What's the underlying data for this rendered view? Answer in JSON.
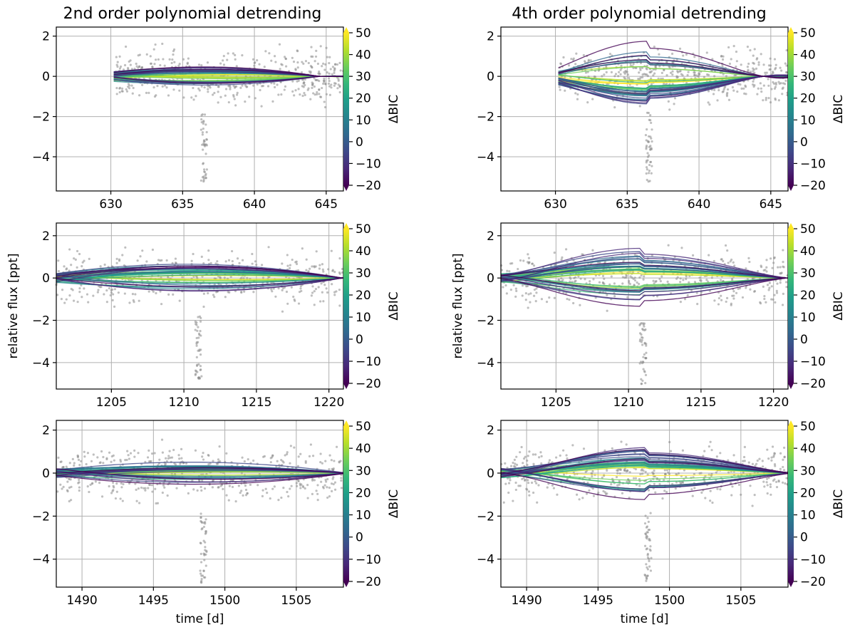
{
  "figure": {
    "column_titles": [
      "2nd order polynomial detrending",
      "4th order polynomial detrending"
    ],
    "ylabel": "relative flux [ppt]",
    "xlabel": "time [d]"
  },
  "colorbar": {
    "label": "ΔBIC",
    "min": -20,
    "max": 50,
    "ticks": [
      50,
      40,
      30,
      20,
      10,
      0,
      -10,
      -20
    ],
    "tick_labels": [
      "50",
      "40",
      "30",
      "20",
      "10",
      "0",
      "−10",
      "−20"
    ],
    "colors": [
      "#440154",
      "#482878",
      "#3e4989",
      "#31688e",
      "#26828e",
      "#1f9e89",
      "#35b779",
      "#6ece58",
      "#b5de2b",
      "#fde725"
    ]
  },
  "chart_data": [
    {
      "type": "line",
      "panel": "row1-col1",
      "order": 2,
      "xlim": [
        626.2,
        646.2
      ],
      "ylim": [
        -5.7,
        2.45
      ],
      "xticks": [
        630,
        635,
        640,
        645
      ],
      "xtick_labels": [
        "630",
        "635",
        "640",
        "645"
      ],
      "yticks": [
        2,
        0,
        -2,
        -4
      ],
      "ytick_labels": [
        "2",
        "0",
        "−2",
        "−4"
      ],
      "show_xlabel": false,
      "show_ylabel": false,
      "data_start": 630.2,
      "data_end": 646.2,
      "transit_center": 636.5,
      "transit_depth": -4.5,
      "model_amplitude": 0.45,
      "model_sign": 1
    },
    {
      "type": "line",
      "panel": "row1-col2",
      "order": 4,
      "xlim": [
        626.2,
        646.2
      ],
      "ylim": [
        -5.7,
        2.45
      ],
      "xticks": [
        630,
        635,
        640,
        645
      ],
      "xtick_labels": [
        "630",
        "635",
        "640",
        "645"
      ],
      "yticks": [
        2,
        0,
        -2,
        -4
      ],
      "ytick_labels": [
        "2",
        "0",
        "−2",
        "−4"
      ],
      "show_xlabel": false,
      "show_ylabel": false,
      "data_start": 630.2,
      "data_end": 646.2,
      "transit_center": 636.5,
      "transit_depth": -4.5,
      "model_amplitude": 1.3,
      "model_sign": -1
    },
    {
      "type": "line",
      "panel": "row2-col1",
      "order": 2,
      "xlim": [
        1201.2,
        1221.0
      ],
      "ylim": [
        -5.25,
        2.6
      ],
      "xticks": [
        1205,
        1210,
        1215,
        1220
      ],
      "xtick_labels": [
        "1205",
        "1210",
        "1215",
        "1220"
      ],
      "yticks": [
        2,
        0,
        -2,
        -4
      ],
      "ytick_labels": [
        "2",
        "0",
        "−2",
        "−4"
      ],
      "show_xlabel": false,
      "show_ylabel": true,
      "data_start": 1201.2,
      "data_end": 1221.0,
      "transit_center": 1211.0,
      "transit_depth": -4.3,
      "model_amplitude": 0.6,
      "model_sign": 1
    },
    {
      "type": "line",
      "panel": "row2-col2",
      "order": 4,
      "xlim": [
        1201.2,
        1221.0
      ],
      "ylim": [
        -5.25,
        2.6
      ],
      "xticks": [
        1205,
        1210,
        1215,
        1220
      ],
      "xtick_labels": [
        "1205",
        "1210",
        "1215",
        "1220"
      ],
      "yticks": [
        2,
        0,
        -2,
        -4
      ],
      "ytick_labels": [
        "2",
        "0",
        "−2",
        "−4"
      ],
      "show_xlabel": false,
      "show_ylabel": true,
      "data_start": 1201.2,
      "data_end": 1221.0,
      "transit_center": 1211.0,
      "transit_depth": -4.3,
      "model_amplitude": 1.1,
      "model_sign": 1
    },
    {
      "type": "line",
      "panel": "row3-col1",
      "order": 2,
      "xlim": [
        1488.2,
        1508.3
      ],
      "ylim": [
        -5.3,
        2.45
      ],
      "xticks": [
        1490,
        1495,
        1500,
        1505
      ],
      "xtick_labels": [
        "1490",
        "1495",
        "1500",
        "1505"
      ],
      "yticks": [
        2,
        0,
        -2,
        -4
      ],
      "ytick_labels": [
        "2",
        "0",
        "−2",
        "−4"
      ],
      "show_xlabel": true,
      "show_ylabel": false,
      "data_start": 1488.2,
      "data_end": 1508.3,
      "transit_center": 1498.5,
      "transit_depth": -4.3,
      "model_amplitude": 0.4,
      "model_sign": 1
    },
    {
      "type": "line",
      "panel": "row3-col2",
      "order": 4,
      "xlim": [
        1488.2,
        1508.3
      ],
      "ylim": [
        -5.3,
        2.45
      ],
      "xticks": [
        1490,
        1495,
        1500,
        1505
      ],
      "xtick_labels": [
        "1490",
        "1495",
        "1500",
        "1505"
      ],
      "yticks": [
        2,
        0,
        -2,
        -4
      ],
      "ytick_labels": [
        "2",
        "0",
        "−2",
        "−4"
      ],
      "show_xlabel": true,
      "show_ylabel": false,
      "data_start": 1488.2,
      "data_end": 1508.3,
      "transit_center": 1498.5,
      "transit_depth": -4.3,
      "model_amplitude": 1.1,
      "model_sign": 1
    }
  ]
}
